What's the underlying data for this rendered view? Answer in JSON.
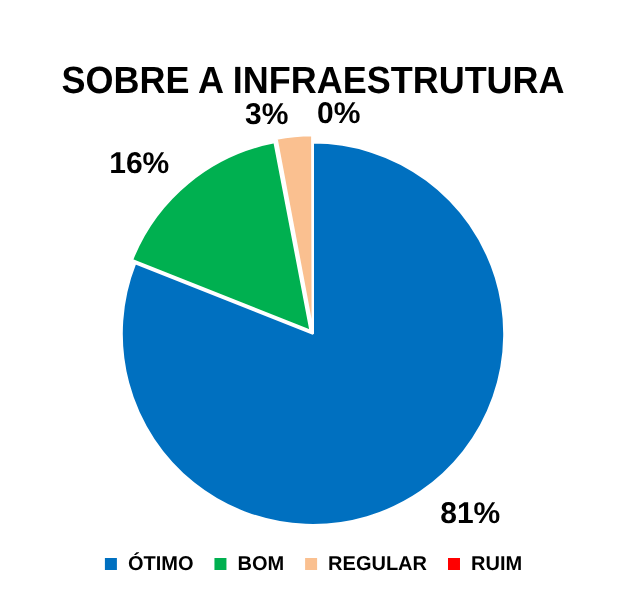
{
  "chart_data": {
    "type": "pie",
    "title": "SOBRE A INFRAESTRUTURA",
    "categories": [
      "ÓTIMO",
      "BOM",
      "REGULAR",
      "RUIM"
    ],
    "values": [
      81,
      16,
      3,
      0
    ],
    "colors": [
      "#0070c0",
      "#00b050",
      "#fac090",
      "#ff0000"
    ],
    "value_labels": [
      "81%",
      "16%",
      "3%",
      "0%"
    ],
    "legend": "bottom"
  }
}
